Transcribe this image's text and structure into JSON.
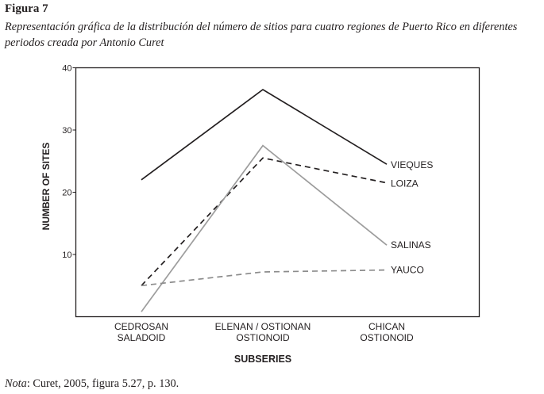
{
  "figure_label": "Figura 7",
  "caption": "Representación gráfica de la distribución del número de sitios para cuatro regiones de Puerto Rico en diferentes periodos creada por Antonio Curet",
  "note": {
    "prefix": "Nota",
    "text": ": Curet, 2005, figura 5.27, p. 130."
  },
  "chart_data": {
    "type": "line",
    "title": "",
    "xlabel": "SUBSERIES",
    "ylabel": "NUMBER OF SITES",
    "ylim": [
      0,
      40
    ],
    "yticks": [
      10,
      20,
      30,
      40
    ],
    "categories": [
      [
        "CEDROSAN",
        "SALADOID"
      ],
      [
        "ELENAN / OSTIONAN",
        "OSTIONOID"
      ],
      [
        "CHICAN",
        "OSTIONOID"
      ]
    ],
    "grid": false,
    "legend": "none (series labeled at line ends)",
    "series": [
      {
        "name": "VIEQUES",
        "values": [
          22,
          36.5,
          24.5
        ],
        "color": "#231f20",
        "style": "solid"
      },
      {
        "name": "LOIZA",
        "values": [
          5,
          25.5,
          21.5
        ],
        "color": "#231f20",
        "style": "dashed"
      },
      {
        "name": "SALINAS",
        "values": [
          0.8,
          27.5,
          11.5
        ],
        "color": "#9d9d9d",
        "style": "solid"
      },
      {
        "name": "YAUCO",
        "values": [
          5,
          7.2,
          7.5
        ],
        "color": "#8c8c8c",
        "style": "dashed"
      }
    ]
  }
}
